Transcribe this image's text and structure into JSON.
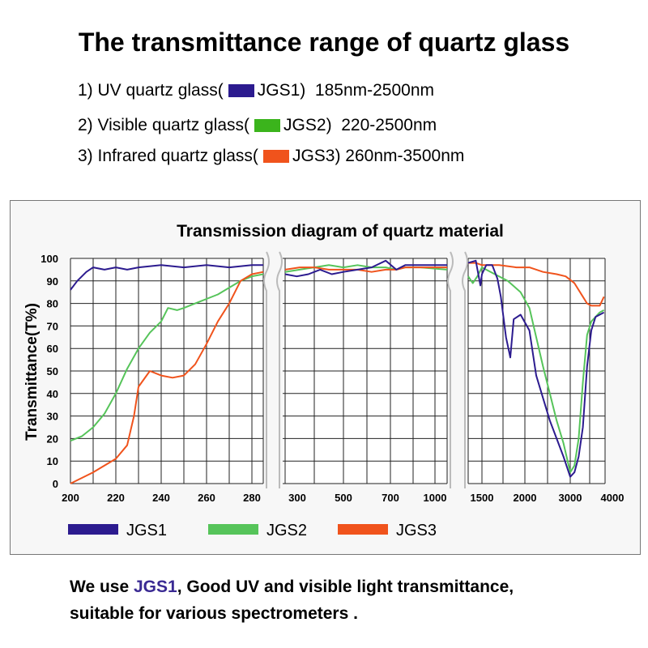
{
  "header": {
    "title": "The transmittance range of quartz glass",
    "lines": [
      {
        "prefix": "1) UV quartz glass(",
        "code": "JGS1)",
        "range": "185nm-2500nm",
        "color": "#2c1b8f"
      },
      {
        "prefix": "2) Visible quartz glass(",
        "code": "JGS2)",
        "range": "220-2500nm",
        "color": "#3bb41c"
      },
      {
        "prefix": "3) Infrared quartz glass(",
        "code": "JGS3)",
        "range": "260nm-3500nm",
        "color": "#f0531c"
      }
    ]
  },
  "chart_data": {
    "type": "line",
    "title": "Transmission diagram of quartz material",
    "ylabel": "Transmittance(T%)",
    "xlabel": "",
    "ylim": [
      0,
      100
    ],
    "yticks": [
      "0",
      "10",
      "20",
      "30",
      "40",
      "50",
      "60",
      "70",
      "80",
      "90",
      "100"
    ],
    "xticks": [
      "200",
      "220",
      "240",
      "260",
      "280",
      "300",
      "500",
      "700",
      "1000",
      "1500",
      "2000",
      "3000",
      "4000"
    ],
    "segments": [
      "200-285 nm",
      "285-1050 nm",
      "1050-4000 nm"
    ],
    "legend": [
      "JGS1",
      "JGS2",
      "JGS3"
    ],
    "colors": {
      "JGS1": "#2c1b8f",
      "JGS2": "#56c45a",
      "JGS3": "#f0531c"
    },
    "series": [
      {
        "name": "JGS1",
        "segment": 1,
        "x": [
          200,
          203,
          207,
          210,
          215,
          220,
          225,
          230,
          240,
          250,
          260,
          270,
          280,
          285
        ],
        "y": [
          86,
          90,
          94,
          96,
          95,
          96,
          95,
          96,
          97,
          96,
          97,
          96,
          97,
          97
        ]
      },
      {
        "name": "JGS2",
        "segment": 1,
        "x": [
          200,
          205,
          210,
          215,
          220,
          225,
          230,
          235,
          240,
          243,
          247,
          250,
          255,
          260,
          265,
          270,
          275,
          280,
          285
        ],
        "y": [
          19,
          21,
          25,
          31,
          40,
          51,
          60,
          67,
          72,
          78,
          77,
          78,
          80,
          82,
          84,
          87,
          90,
          92,
          93
        ]
      },
      {
        "name": "JGS3",
        "segment": 1,
        "x": [
          200,
          210,
          220,
          225,
          228,
          230,
          235,
          240,
          245,
          250,
          255,
          260,
          265,
          270,
          275,
          280,
          285
        ],
        "y": [
          0,
          5,
          11,
          17,
          30,
          43,
          50,
          48,
          47,
          48,
          53,
          62,
          72,
          80,
          90,
          93,
          94
        ]
      },
      {
        "name": "JGS1",
        "segment": 2,
        "x": [
          300,
          340,
          380,
          420,
          460,
          500,
          560,
          620,
          680,
          740,
          800,
          900,
          1050
        ],
        "y": [
          93,
          92,
          93,
          95,
          93,
          94,
          95,
          96,
          99,
          95,
          97,
          97,
          97
        ]
      },
      {
        "name": "JGS2",
        "segment": 2,
        "x": [
          300,
          350,
          400,
          450,
          500,
          560,
          620,
          680,
          740,
          800,
          900,
          1050
        ],
        "y": [
          94,
          95,
          96,
          97,
          96,
          97,
          96,
          96,
          95,
          96,
          96,
          95
        ]
      },
      {
        "name": "JGS3",
        "segment": 2,
        "x": [
          300,
          350,
          400,
          450,
          500,
          560,
          620,
          680,
          740,
          800,
          900,
          1050
        ],
        "y": [
          95,
          96,
          96,
          95,
          95,
          95,
          94,
          95,
          95,
          96,
          96,
          96
        ]
      },
      {
        "name": "JGS1",
        "segment": 3,
        "x": [
          1050,
          1300,
          1450,
          1500,
          1550,
          1620,
          1680,
          1720,
          1780,
          1830,
          1870,
          1950,
          2100,
          2250,
          2400,
          2550,
          2700,
          2850,
          3000,
          3100,
          3200,
          3300,
          3400,
          3500,
          3600,
          3700,
          3800
        ],
        "y": [
          98,
          99,
          88,
          93,
          97,
          97,
          91,
          83,
          65,
          56,
          73,
          75,
          68,
          48,
          38,
          28,
          20,
          12,
          3,
          5,
          12,
          25,
          52,
          68,
          74,
          75,
          76
        ]
      },
      {
        "name": "JGS2",
        "segment": 3,
        "x": [
          1050,
          1200,
          1350,
          1500,
          1650,
          1800,
          1950,
          2100,
          2250,
          2400,
          2550,
          2700,
          2850,
          3000,
          3100,
          3200,
          3300,
          3400,
          3500,
          3600,
          3700,
          3800
        ],
        "y": [
          92,
          89,
          92,
          96,
          93,
          90,
          85,
          78,
          65,
          52,
          40,
          28,
          18,
          5,
          8,
          20,
          45,
          66,
          72,
          74,
          76,
          77
        ]
      },
      {
        "name": "JGS3",
        "segment": 3,
        "x": [
          1050,
          1300,
          1500,
          1700,
          1900,
          2100,
          2400,
          2700,
          2900,
          3100,
          3300,
          3400,
          3500,
          3600,
          3700,
          3800
        ],
        "y": [
          98,
          98,
          97,
          97,
          96,
          96,
          94,
          93,
          92,
          89,
          83,
          80,
          79,
          79,
          79,
          83
        ]
      }
    ]
  },
  "footer": {
    "prefix": "We use ",
    "highlight": "JGS1",
    "rest": ", Good UV and visible light transmittance,",
    "line2": "suitable for various spectrometers ."
  }
}
